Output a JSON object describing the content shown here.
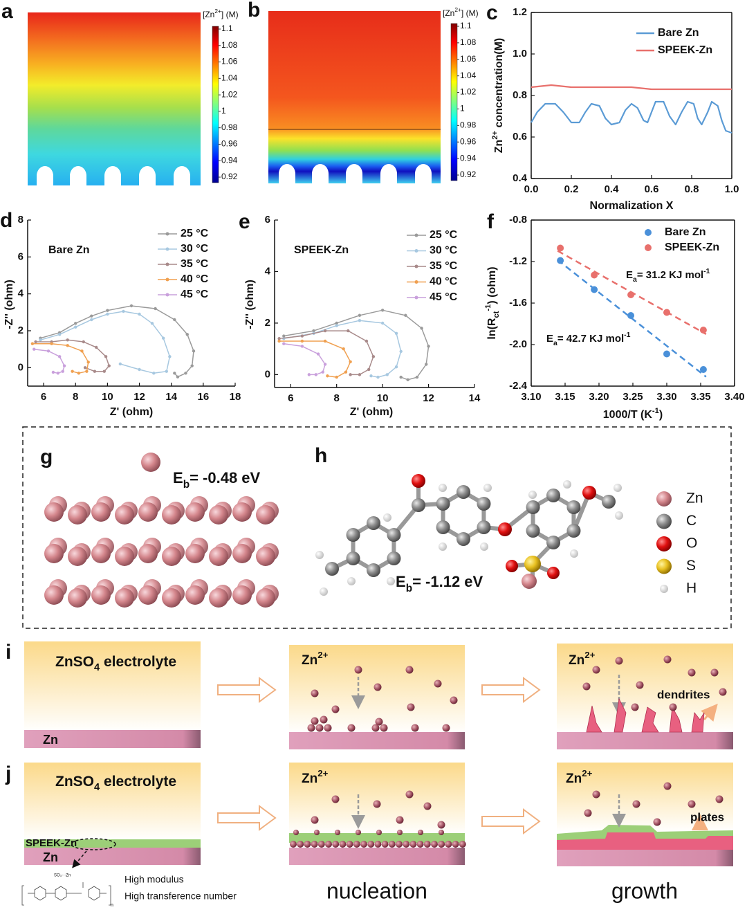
{
  "labels": [
    "a",
    "b",
    "c",
    "d",
    "e",
    "f",
    "g",
    "h",
    "i",
    "j"
  ],
  "colormaps": [
    {
      "title": [
        {
          "t": "[Zn"
        },
        {
          "sup": "2+"
        },
        {
          "t": "] (M)"
        }
      ],
      "clim": [
        0.92,
        1.1
      ],
      "ticks": [
        1.1,
        1.08,
        1.06,
        1.04,
        1.02,
        1,
        0.98,
        0.96,
        0.94,
        0.92
      ]
    },
    {
      "title": [
        {
          "t": "[Zn"
        },
        {
          "sup": "2+"
        },
        {
          "t": "] (M)"
        }
      ],
      "clim": [
        0.92,
        1.1
      ],
      "ticks": [
        1.1,
        1.08,
        1.06,
        1.04,
        1.02,
        1,
        0.98,
        0.96,
        0.94,
        0.92
      ]
    }
  ],
  "chart_data": [
    {
      "type": "line",
      "xlabel": "Normalization X",
      "ylabel": [
        {
          "t": "Zn"
        },
        {
          "sup": "2+"
        },
        {
          "t": " concentration(M)"
        }
      ],
      "xlim": [
        0,
        1
      ],
      "ylim": [
        0.4,
        1.2
      ],
      "xticks": [
        {
          "value": 0,
          "label": "0.0"
        },
        0.2,
        0.4,
        0.6,
        0.8,
        {
          "value": 1,
          "label": "1.0"
        }
      ],
      "yticks": [
        0.4,
        0.6,
        0.8,
        {
          "value": 1,
          "label": "1.0"
        },
        1.2
      ],
      "legend": "upper right",
      "series": [
        {
          "name": "Bare Zn",
          "color": "#5b9bd5",
          "x": [
            0,
            0.03,
            0.07,
            0.12,
            0.16,
            0.2,
            0.24,
            0.27,
            0.3,
            0.34,
            0.37,
            0.4,
            0.44,
            0.47,
            0.5,
            0.53,
            0.56,
            0.58,
            0.6,
            0.62,
            0.66,
            0.69,
            0.72,
            0.75,
            0.78,
            0.81,
            0.83,
            0.85,
            0.88,
            0.9,
            0.93,
            0.95,
            0.97,
            1
          ],
          "values": [
            0.67,
            0.72,
            0.76,
            0.76,
            0.72,
            0.67,
            0.67,
            0.72,
            0.76,
            0.75,
            0.69,
            0.66,
            0.67,
            0.73,
            0.76,
            0.74,
            0.68,
            0.67,
            0.72,
            0.77,
            0.77,
            0.7,
            0.66,
            0.72,
            0.77,
            0.76,
            0.69,
            0.66,
            0.72,
            0.77,
            0.75,
            0.68,
            0.63,
            0.62
          ]
        },
        {
          "name": "SPEEK-Zn",
          "color": "#e8706c",
          "x": [
            0,
            0.1,
            0.2,
            0.3,
            0.4,
            0.5,
            0.6,
            0.7,
            0.8,
            0.9,
            1
          ],
          "values": [
            0.84,
            0.85,
            0.84,
            0.84,
            0.84,
            0.84,
            0.83,
            0.83,
            0.83,
            0.83,
            0.83
          ]
        }
      ]
    },
    {
      "type": "line",
      "markers": true,
      "annotation": "Bare Zn",
      "xlabel": "Z' (ohm)",
      "ylabel": "-Z'' (ohm)",
      "xlim": [
        5,
        18
      ],
      "ylim": [
        -1,
        8
      ],
      "xticks": [
        6,
        8,
        10,
        12,
        14,
        16,
        18
      ],
      "yticks": [
        0,
        2,
        4,
        6,
        8
      ],
      "legend": "upper right",
      "series": [
        {
          "name": "25 °C",
          "color": "#9a9a9a",
          "x": [
            5.8,
            7,
            8,
            9,
            10,
            11.5,
            13,
            14.2,
            15,
            15.4,
            15.3,
            14.9,
            14.4,
            14.2
          ],
          "values": [
            1.6,
            1.9,
            2.4,
            2.8,
            3.1,
            3.35,
            3.2,
            2.6,
            1.8,
            0.9,
            0.1,
            -0.3,
            -0.5,
            -0.3
          ]
        },
        {
          "name": "30 °C",
          "color": "#a7c8e0",
          "x": [
            5.8,
            7,
            8,
            9,
            10,
            11,
            12,
            12.8,
            13.5,
            13.9,
            13.7,
            12.9,
            12,
            10.8
          ],
          "values": [
            1.5,
            1.8,
            2.2,
            2.6,
            2.9,
            3.05,
            2.9,
            2.4,
            1.6,
            0.6,
            -0.2,
            -0.3,
            -0.1,
            0.2
          ]
        },
        {
          "name": "35 °C",
          "color": "#a88a8a",
          "x": [
            5.5,
            6.5,
            7.5,
            8.5,
            9.3,
            9.9,
            10.1,
            9.8,
            9.2,
            8.6
          ],
          "values": [
            1.4,
            1.4,
            1.5,
            1.4,
            1.1,
            0.6,
            0.1,
            -0.2,
            -0.2,
            0
          ]
        },
        {
          "name": "40 °C",
          "color": "#f0a050",
          "x": [
            5.3,
            6.5,
            7.5,
            8.4,
            8.8,
            8.7,
            8.2,
            7.8
          ],
          "values": [
            1.3,
            1.3,
            1.2,
            0.9,
            0.3,
            -0.2,
            -0.3,
            -0.2
          ]
        },
        {
          "name": "45 °C",
          "color": "#c9a0dc",
          "x": [
            5.4,
            6.3,
            7,
            7.3,
            7.2,
            6.9,
            6.6
          ],
          "values": [
            1,
            0.9,
            0.6,
            0.1,
            -0.2,
            -0.3,
            -0.25
          ]
        }
      ]
    },
    {
      "type": "line",
      "markers": true,
      "annotation": "SPEEK-Zn",
      "xlabel": "Z' (ohm)",
      "ylabel": "-Z'' (ohm)",
      "xlim": [
        5.3,
        14
      ],
      "ylim": [
        -0.5,
        6
      ],
      "xticks": [
        6,
        8,
        10,
        12,
        14
      ],
      "yticks": [
        0,
        2,
        4,
        6
      ],
      "legend": "upper right",
      "series": [
        {
          "name": "25 °C",
          "color": "#9a9a9a",
          "x": [
            5.7,
            7,
            8,
            9,
            10,
            11,
            11.7,
            12,
            11.9,
            11.5,
            11.1,
            10.8
          ],
          "values": [
            1.5,
            1.7,
            2,
            2.3,
            2.5,
            2.3,
            1.8,
            1.1,
            0.4,
            -0.1,
            -0.2,
            -0.1
          ]
        },
        {
          "name": "30 °C",
          "color": "#a7c8e0",
          "x": [
            5.7,
            7,
            8,
            9,
            10,
            10.6,
            10.8,
            10.6,
            10.2,
            9.8,
            9.5
          ],
          "values": [
            1.4,
            1.6,
            1.9,
            2.1,
            2,
            1.6,
            0.9,
            0.3,
            0,
            -0.1,
            -0.05
          ]
        },
        {
          "name": "35 °C",
          "color": "#a88a8a",
          "x": [
            5.5,
            6.5,
            7.5,
            8.5,
            9.3,
            9.6,
            9.4,
            9,
            8.6
          ],
          "values": [
            1.4,
            1.5,
            1.7,
            1.7,
            1.3,
            0.7,
            0.2,
            0,
            0
          ]
        },
        {
          "name": "40 °C",
          "color": "#f0a050",
          "x": [
            5.5,
            6.5,
            7.5,
            8.3,
            8.6,
            8.4,
            8,
            7.6
          ],
          "values": [
            1.3,
            1.3,
            1.3,
            1,
            0.5,
            0.1,
            -0.1,
            -0.05
          ]
        },
        {
          "name": "45 °C",
          "color": "#c9a0dc",
          "x": [
            5.7,
            6.5,
            7.2,
            7.5,
            7.4,
            7.1,
            6.8
          ],
          "values": [
            1.2,
            1.1,
            0.8,
            0.4,
            0.1,
            0,
            0
          ]
        }
      ]
    },
    {
      "type": "scatter",
      "fit": true,
      "xlabel": [
        {
          "t": "1000/T (K"
        },
        {
          "sup": "-1"
        },
        {
          "t": ")"
        }
      ],
      "ylabel": [
        {
          "t": "ln(R"
        },
        {
          "sub": "ct"
        },
        {
          "sup": "-1"
        },
        {
          "t": ") (ohm)"
        }
      ],
      "xlim": [
        3.1,
        3.4
      ],
      "ylim": [
        -2.4,
        -0.8
      ],
      "xticks": [
        {
          "value": 3.1,
          "label": "3.10"
        },
        3.15,
        {
          "value": 3.2,
          "label": "3.20"
        },
        3.25,
        {
          "value": 3.3,
          "label": "3.30"
        },
        3.35,
        {
          "value": 3.4,
          "label": "3.40"
        }
      ],
      "yticks": [
        -2.4,
        {
          "value": -2,
          "label": "-2.0"
        },
        -1.6,
        -1.2,
        -0.8
      ],
      "legend": "upper right",
      "series": [
        {
          "name": "Bare Zn",
          "color": "#4a90d9",
          "x": [
            3.143,
            3.193,
            3.247,
            3.3,
            3.354
          ],
          "values": [
            -1.19,
            -1.47,
            -1.72,
            -2.09,
            -2.24
          ],
          "annotation": [
            {
              "t": "E"
            },
            {
              "sub": "a"
            },
            {
              "t": "= 42.7 KJ mol"
            },
            {
              "sup": "-1"
            }
          ]
        },
        {
          "name": "SPEEK-Zn",
          "color": "#e8706c",
          "x": [
            3.143,
            3.193,
            3.247,
            3.3,
            3.354
          ],
          "values": [
            -1.07,
            -1.33,
            -1.52,
            -1.69,
            -1.86
          ],
          "annotation": [
            {
              "t": "E"
            },
            {
              "sub": "a"
            },
            {
              "t": "= 31.2 KJ mol"
            },
            {
              "sup": "-1"
            }
          ]
        }
      ]
    }
  ],
  "dft": {
    "g": [
      {
        "t": "E"
      },
      {
        "sub": "b"
      },
      {
        "t": "= -0.48 eV"
      }
    ],
    "h": [
      {
        "t": "E"
      },
      {
        "sub": "b"
      },
      {
        "t": "= -1.12 eV"
      }
    ],
    "legend": [
      {
        "name": "Zn",
        "color": "#d4868c"
      },
      {
        "name": "C",
        "color": "#8c8c8c"
      },
      {
        "name": "O",
        "color": "#e01010"
      },
      {
        "name": "S",
        "color": "#e8c020"
      },
      {
        "name": "H",
        "color": "#f4f4f4"
      }
    ]
  },
  "schematic": {
    "electrolyte": [
      {
        "t": "ZnSO"
      },
      {
        "sub": "4"
      },
      {
        "t": " electrolyte"
      }
    ],
    "substrate": "Zn",
    "ion": [
      {
        "t": "Zn"
      },
      {
        "sup": "2+"
      }
    ],
    "dendrites": "dendrites",
    "plates": "plates",
    "coating": "SPEEK-Zn",
    "structure": {
      "group": "SO₃···Zn",
      "repeat": "n"
    },
    "properties": [
      "High modulus",
      "High transference number"
    ],
    "stages": [
      "nucleation",
      "growth"
    ]
  }
}
